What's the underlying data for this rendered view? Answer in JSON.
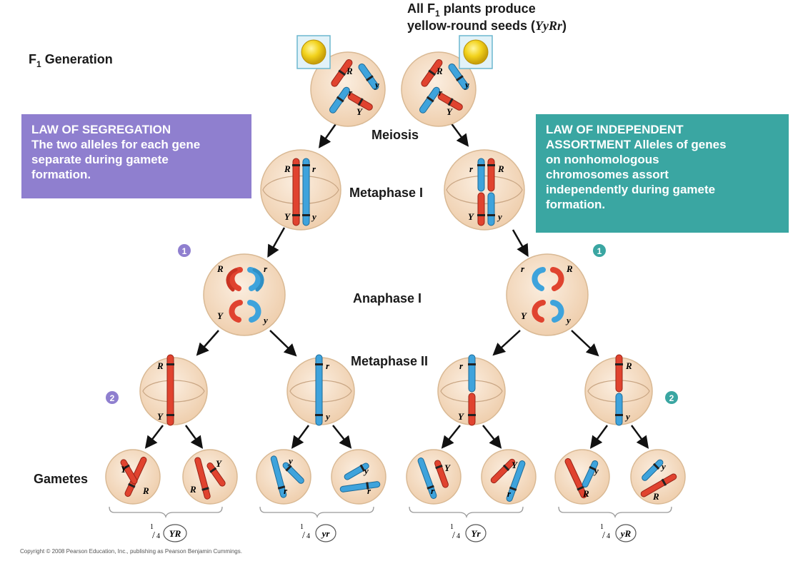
{
  "title": {
    "line1_a": "All F",
    "line1_sub": "1",
    "line1_b": " plants produce",
    "line2_a": "yellow-round seeds (",
    "line2_genotype": "YyRr",
    "line2_b": ")"
  },
  "row_labels": {
    "f1_main": "F",
    "f1_sub": "1",
    "f1_rest": " Generation",
    "gametes": "Gametes"
  },
  "stage_labels": {
    "meiosis": "Meiosis",
    "metaphase1": "Metaphase I",
    "anaphase1": "Anaphase I",
    "metaphase2": "Metaphase II"
  },
  "law_segregation": {
    "heading": "LAW OF SEGREGATION",
    "lines": [
      "The two alleles for each gene",
      "separate during gamete",
      "formation."
    ]
  },
  "law_independent": {
    "lines": [
      "LAW OF INDEPENDENT",
      "ASSORTMENT Alleles of genes",
      "on nonhomologous",
      "chromosomes assort",
      "independently during gamete",
      "formation."
    ]
  },
  "step_markers": {
    "step1": "1",
    "step2": "2"
  },
  "alleles": {
    "R": "R",
    "r": "r",
    "Y": "Y",
    "y": "y"
  },
  "gamete_groups": [
    {
      "fraction_num": "1",
      "fraction_den": "4",
      "genotype": "YR"
    },
    {
      "fraction_num": "1",
      "fraction_den": "4",
      "genotype": "yr"
    },
    {
      "fraction_num": "1",
      "fraction_den": "4",
      "genotype": "Yr"
    },
    {
      "fraction_num": "1",
      "fraction_den": "4",
      "genotype": "yR"
    }
  ],
  "copyright": "Copyright © 2008 Pearson Education, Inc., publishing as Pearson Benjamin Cummings.",
  "colors": {
    "red_chromosome": "#e0432f",
    "blue_chromosome": "#3ea3dc",
    "cell_fill": "#f4dcc4",
    "cell_stroke": "#d4b090",
    "purple": "#8f7fcf",
    "teal": "#3aa6a2",
    "seed_yellow": "#f1d21a"
  }
}
